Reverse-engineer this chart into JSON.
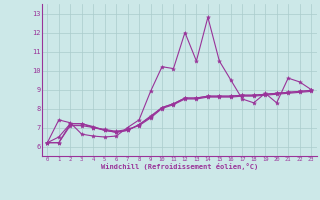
{
  "xlabel": "Windchill (Refroidissement éolien,°C)",
  "xlim": [
    -0.5,
    23.5
  ],
  "ylim": [
    5.5,
    13.5
  ],
  "xticks": [
    0,
    1,
    2,
    3,
    4,
    5,
    6,
    7,
    8,
    9,
    10,
    11,
    12,
    13,
    14,
    15,
    16,
    17,
    18,
    19,
    20,
    21,
    22,
    23
  ],
  "yticks": [
    6,
    7,
    8,
    9,
    10,
    11,
    12,
    13
  ],
  "background_color": "#cce8e8",
  "line_color": "#993399",
  "grid_color": "#aacccc",
  "lines": [
    [
      6.2,
      7.4,
      7.25,
      6.65,
      6.55,
      6.5,
      6.55,
      7.0,
      7.4,
      8.9,
      10.2,
      10.1,
      12.0,
      10.5,
      12.8,
      10.5,
      9.5,
      8.5,
      8.3,
      8.8,
      8.3,
      9.6,
      9.4,
      9.0
    ],
    [
      6.2,
      6.2,
      7.2,
      7.2,
      7.05,
      6.85,
      6.75,
      6.85,
      7.15,
      7.55,
      8.05,
      8.25,
      8.55,
      8.55,
      8.65,
      8.65,
      8.65,
      8.7,
      8.7,
      8.75,
      8.8,
      8.85,
      8.9,
      8.95
    ],
    [
      6.2,
      6.2,
      7.1,
      7.1,
      7.0,
      6.9,
      6.8,
      6.9,
      7.1,
      7.5,
      8.0,
      8.2,
      8.5,
      8.5,
      8.6,
      8.6,
      8.6,
      8.65,
      8.65,
      8.7,
      8.75,
      8.8,
      8.85,
      8.9
    ],
    [
      6.2,
      6.5,
      7.2,
      7.2,
      7.0,
      6.85,
      6.75,
      6.85,
      7.15,
      7.6,
      8.05,
      8.25,
      8.55,
      8.55,
      8.65,
      8.65,
      8.65,
      8.7,
      8.7,
      8.75,
      8.8,
      8.85,
      8.9,
      8.95
    ]
  ]
}
